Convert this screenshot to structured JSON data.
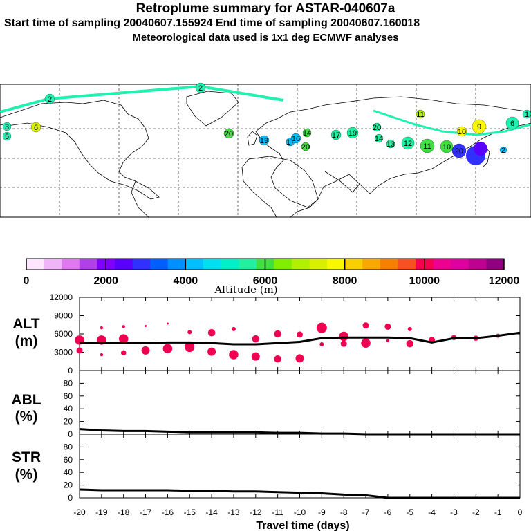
{
  "header": {
    "title": "Retroplume summary for ASTAR-040607a",
    "sampling": "Start time of sampling 20040607.155924     End time of sampling 20040607.160018",
    "met": "Meteorological data used is 1x1 deg ECMWF analyses"
  },
  "colorbar": {
    "title": "Altitude (m)",
    "tick_labels": [
      "0",
      "2000",
      "4000",
      "6000",
      "8000",
      "10000",
      "12000"
    ],
    "colors": [
      "#ffe6ff",
      "#f0b4f8",
      "#e078f0",
      "#b040e8",
      "#8000ff",
      "#5a00ff",
      "#3030ff",
      "#0060ff",
      "#0090ff",
      "#00c0ff",
      "#00e0f0",
      "#00f0c8",
      "#20f0a0",
      "#40e040",
      "#80f000",
      "#b0f000",
      "#d8f000",
      "#f8f800",
      "#f8d000",
      "#f8a800",
      "#f88000",
      "#f85020",
      "#f80050",
      "#f00090",
      "#e000a0",
      "#c00090",
      "#900080"
    ]
  },
  "map_labels": {
    "items": [
      {
        "text": "2",
        "color": "#20f0b0"
      },
      {
        "text": "2",
        "color": "#20f0b0"
      },
      {
        "text": "3",
        "color": "#20f0b0"
      },
      {
        "text": "5",
        "color": "#20f0b0"
      },
      {
        "text": "6",
        "color": "#d8f000"
      },
      {
        "text": "20",
        "color": "#40e040"
      },
      {
        "text": "19",
        "color": "#00c0ff"
      },
      {
        "text": "17",
        "color": "#00c0ff"
      },
      {
        "text": "16",
        "color": "#00c0ff"
      },
      {
        "text": "20",
        "color": "#40e040"
      },
      {
        "text": "14",
        "color": "#40e040"
      },
      {
        "text": "17",
        "color": "#20f0a0"
      },
      {
        "text": "19",
        "color": "#20f0a0"
      },
      {
        "text": "20",
        "color": "#20f0a0"
      },
      {
        "text": "14",
        "color": "#20f0a0"
      },
      {
        "text": "13",
        "color": "#20f0a0"
      },
      {
        "text": "12",
        "color": "#20f0a0"
      },
      {
        "text": "11",
        "color": "#40e040"
      },
      {
        "text": "10",
        "color": "#40e040"
      },
      {
        "text": "11",
        "color": "#b0f000"
      },
      {
        "text": "10",
        "color": "#f8f800"
      },
      {
        "text": "9",
        "color": "#f8f800"
      },
      {
        "text": "6",
        "color": "#20f0b0"
      },
      {
        "text": "20",
        "color": "#3030ff"
      },
      {
        "text": "2",
        "color": "#00c0ff"
      },
      {
        "text": "1",
        "color": "#20f0b0"
      }
    ]
  },
  "panels": {
    "alt": {
      "label_top": "ALT",
      "label_bottom": "(m)"
    },
    "abl": {
      "label_top": "ABL",
      "label_bottom": "(%)"
    },
    "str": {
      "label_top": "STR",
      "label_bottom": "(%)"
    },
    "xlabel": "Travel time (days)"
  },
  "chart_data": [
    {
      "type": "line",
      "title": "ALT (m)",
      "xlabel": "Travel time (days)",
      "ylabel": "ALT (m)",
      "xlim": [
        -20,
        0
      ],
      "ylim": [
        0,
        12000
      ],
      "yticks": [
        0,
        3000,
        6000,
        9000,
        12000
      ],
      "ytick_labels": [
        "0",
        "3000",
        "6000",
        "9000",
        "12000"
      ],
      "xticks": [
        -20,
        -19,
        -18,
        -17,
        -16,
        -15,
        -14,
        -13,
        -12,
        -11,
        -10,
        -9,
        -8,
        -7,
        -6,
        -5,
        -4,
        -3,
        -2,
        -1,
        0
      ],
      "xtick_labels": [
        "-20",
        "-19",
        "-18",
        "-17",
        "-16",
        "-15",
        "-14",
        "-13",
        "-12",
        "-11",
        "-10",
        "-9",
        "-8",
        "-7",
        "-6",
        "-5",
        "-4",
        "-3",
        "-2",
        "-1",
        "0"
      ],
      "series": [
        {
          "name": "mean altitude",
          "color": "#000000",
          "x": [
            -20,
            -19,
            -18,
            -17,
            -16,
            -15,
            -14,
            -13,
            -12,
            -11,
            -10,
            -9,
            -8,
            -7,
            -6,
            -5,
            -4,
            -3,
            -2,
            -1,
            0
          ],
          "y": [
            4500,
            4500,
            4500,
            4500,
            4600,
            4600,
            4500,
            4300,
            4300,
            4500,
            4700,
            5300,
            5400,
            5400,
            5400,
            5300,
            4600,
            5300,
            5300,
            5700,
            6200
          ]
        }
      ],
      "clusters": {
        "color": "#f00050",
        "x": [
          -20,
          -20,
          -19,
          -19,
          -19,
          -18,
          -18,
          -18,
          -18,
          -17,
          -17,
          -16,
          -16,
          -15,
          -15,
          -15,
          -14,
          -14,
          -13,
          -13,
          -12,
          -12,
          -11,
          -11,
          -10,
          -10,
          -9,
          -9,
          -8,
          -8,
          -7,
          -7,
          -6,
          -6,
          -5,
          -5,
          -4,
          -3,
          -2,
          -1
        ],
        "y": [
          3300,
          5000,
          7000,
          2600,
          5000,
          7200,
          5400,
          2900,
          5200,
          7300,
          3300,
          7700,
          3600,
          6300,
          3800,
          4000,
          6200,
          3100,
          6800,
          2600,
          5200,
          2300,
          6000,
          1900,
          5900,
          2000,
          7000,
          4300,
          5600,
          4400,
          7400,
          4500,
          7200,
          4900,
          6800,
          4400,
          5000,
          5400,
          5300,
          5700
        ],
        "size": [
          6,
          9,
          3,
          3,
          9,
          3,
          4,
          5,
          9,
          2,
          8,
          2,
          9,
          4,
          9,
          9,
          7,
          8,
          4,
          9,
          7,
          8,
          7,
          7,
          6,
          8,
          10,
          4,
          9,
          6,
          6,
          9,
          6,
          3,
          4,
          7,
          6,
          5,
          5,
          4
        ]
      }
    },
    {
      "type": "line",
      "title": "ABL (%)",
      "xlabel": "Travel time (days)",
      "ylabel": "ABL (%)",
      "xlim": [
        -20,
        0
      ],
      "ylim": [
        0,
        100
      ],
      "yticks": [
        0,
        20,
        40,
        60,
        80
      ],
      "ytick_labels": [
        "0",
        "20",
        "40",
        "60",
        "80"
      ],
      "xtick_labels": [
        "-20",
        "-19",
        "-18",
        "-17",
        "-16",
        "-15",
        "-14",
        "-13",
        "-12",
        "-11",
        "-10",
        "-9",
        "-8",
        "-7",
        "-6",
        "-5",
        "-4",
        "-3",
        "-2",
        "-1",
        "0"
      ],
      "series": [
        {
          "name": "ABL fraction",
          "color": "#000000",
          "x": [
            -20,
            -19,
            -18,
            -17,
            -16,
            -15,
            -14,
            -13,
            -12,
            -11,
            -10,
            -9,
            -8,
            -7,
            -6,
            -5,
            -4,
            -3,
            -2,
            -1,
            0
          ],
          "y": [
            8,
            6,
            5,
            5,
            4,
            3,
            3,
            3,
            3,
            2,
            2,
            1,
            1,
            0,
            0,
            0,
            0,
            0,
            0,
            0,
            0
          ]
        }
      ]
    },
    {
      "type": "line",
      "title": "STR (%)",
      "xlabel": "Travel time (days)",
      "ylabel": "STR (%)",
      "xlim": [
        -20,
        0
      ],
      "ylim": [
        0,
        100
      ],
      "yticks": [
        0,
        20,
        40,
        60,
        80
      ],
      "ytick_labels": [
        "0",
        "20",
        "40",
        "60",
        "80"
      ],
      "xtick_labels": [
        "-20",
        "-19",
        "-18",
        "-17",
        "-16",
        "-15",
        "-14",
        "-13",
        "-12",
        "-11",
        "-10",
        "-9",
        "-8",
        "-7",
        "-6",
        "-5",
        "-4",
        "-3",
        "-2",
        "-1",
        "0"
      ],
      "series": [
        {
          "name": "stratospheric fraction",
          "color": "#000000",
          "x": [
            -20,
            -19,
            -18,
            -17,
            -16,
            -15,
            -14,
            -13,
            -12,
            -11,
            -10,
            -9,
            -8,
            -7,
            -6,
            -5,
            -4,
            -3,
            -2,
            -1,
            0
          ],
          "y": [
            13,
            12,
            12,
            12,
            12,
            11,
            11,
            10,
            10,
            9,
            8,
            7,
            5,
            4,
            0,
            0,
            0,
            0,
            0,
            0,
            0
          ]
        }
      ]
    }
  ]
}
